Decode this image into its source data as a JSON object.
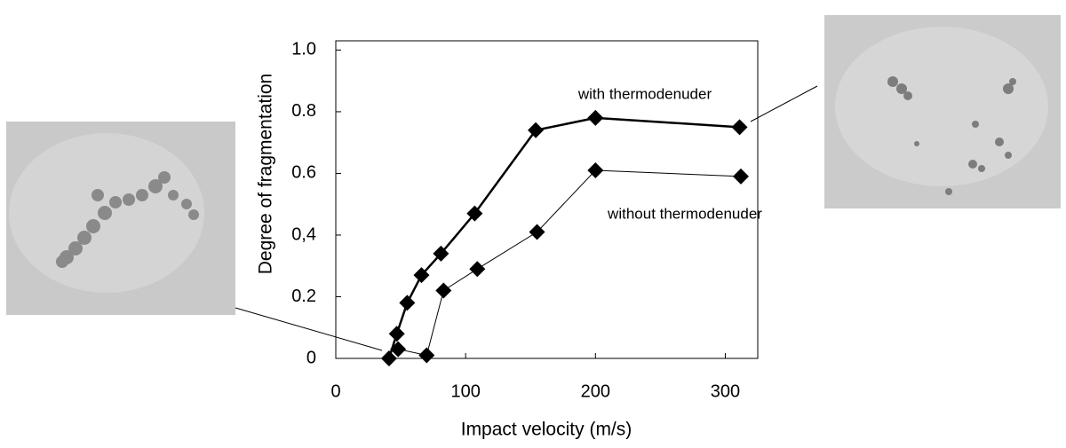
{
  "chart_data": {
    "type": "line",
    "xlabel": "Impact velocity (m/s)",
    "ylabel": "Degree of fragmentation",
    "xlim": [
      0,
      325
    ],
    "ylim": [
      0,
      1.03
    ],
    "xticks": [
      0,
      100,
      200,
      300
    ],
    "yticks": [
      0,
      0.2,
      {
        "value": 0.4,
        "label": "0,4"
      },
      0.6,
      0.8,
      {
        "value": 1.0,
        "label": "1.0"
      }
    ],
    "annotations": [
      "with thermodenuder",
      "without thermodenuder"
    ],
    "series": [
      {
        "color": "#000000",
        "x": [
          41,
          47,
          55,
          66,
          81,
          107,
          154,
          200,
          311
        ],
        "values": [
          0,
          0.08,
          0.18,
          0.27,
          0.34,
          0.47,
          0.74,
          0.78,
          0.75
        ]
      },
      {
        "color": "#000000",
        "x": [
          48,
          70,
          83,
          109,
          155,
          200,
          312
        ],
        "values": [
          0.03,
          0.01,
          0.22,
          0.29,
          0.41,
          0.61,
          0.59
        ]
      }
    ]
  }
}
